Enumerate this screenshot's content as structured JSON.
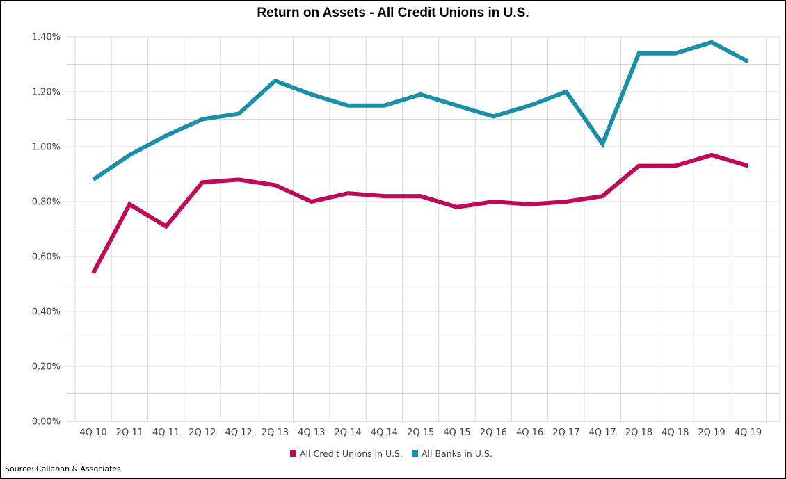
{
  "chart_data": {
    "type": "line",
    "title": "Return on Assets - All Credit Unions in U.S.",
    "source": "Source: Callahan & Associates",
    "categories": [
      "4Q 10",
      "2Q 11",
      "4Q 11",
      "2Q 12",
      "4Q 12",
      "2Q 13",
      "4Q 13",
      "2Q 14",
      "4Q 14",
      "2Q 15",
      "4Q 15",
      "2Q 16",
      "4Q 16",
      "2Q 17",
      "4Q 17",
      "2Q 18",
      "4Q 18",
      "2Q 19",
      "4Q 19"
    ],
    "ylim": [
      0,
      1.4
    ],
    "yticks": [
      0,
      0.2,
      0.4,
      0.6,
      0.8,
      1.0,
      1.2,
      1.4
    ],
    "ytick_labels": [
      "0.00%",
      "0.20%",
      "0.40%",
      "0.60%",
      "0.80%",
      "1.00%",
      "1.20%",
      "1.40%"
    ],
    "grid": true,
    "legend_position": "bottom",
    "series": [
      {
        "name": "All Credit Unions in U.S.",
        "color": "#c0085a",
        "values": [
          0.54,
          0.79,
          0.71,
          0.87,
          0.88,
          0.86,
          0.8,
          0.83,
          0.82,
          0.82,
          0.78,
          0.8,
          0.79,
          0.8,
          0.82,
          0.93,
          0.93,
          0.97,
          0.93
        ]
      },
      {
        "name": "All Banks in U.S.",
        "color": "#1a8faa",
        "values": [
          0.88,
          0.97,
          1.04,
          1.1,
          1.12,
          1.24,
          1.19,
          1.15,
          1.15,
          1.19,
          1.15,
          1.11,
          1.15,
          1.2,
          1.01,
          1.34,
          1.34,
          1.38,
          1.31
        ]
      }
    ]
  }
}
